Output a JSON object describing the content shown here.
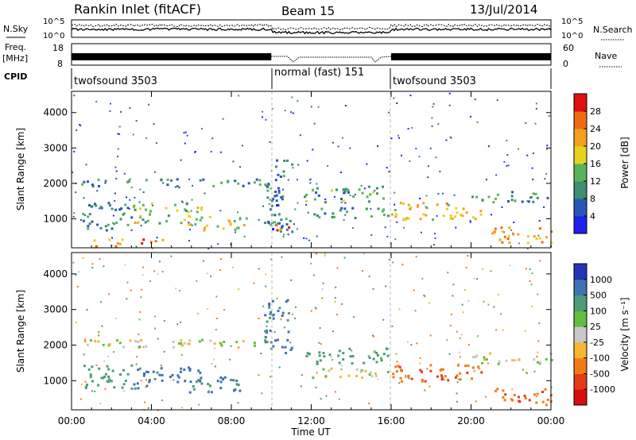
{
  "header": {
    "station": "Rankin Inlet (fitACF)",
    "beam": "Beam 15",
    "date": "13/Jul/2014"
  },
  "top_panels": {
    "nsky_label": "N.Sky",
    "nsearch_label": "N.Search",
    "freq_label_1": "Freq.",
    "freq_label_2": "[MHz]",
    "nave_label": "Nave",
    "cpid_label": "CPID",
    "noise_ticks_left": [
      "10^5",
      "10^0"
    ],
    "noise_ticks_right": [
      "10^5",
      "10^0"
    ],
    "freq_ticks": [
      "18",
      "8"
    ],
    "nave_ticks": [
      "60",
      "0"
    ]
  },
  "cpid_segments": [
    {
      "label": "twofsound 3503",
      "start_h": 0,
      "end_h": 10
    },
    {
      "label": "normal (fast) 151",
      "start_h": 10,
      "end_h": 16
    },
    {
      "label": "twofsound 3503",
      "start_h": 16,
      "end_h": 24
    }
  ],
  "axes": {
    "ylabel": "Slant Range [km]",
    "xlabel": "Time UT",
    "y_ticks": [
      "1000",
      "2000",
      "3000",
      "4000"
    ],
    "x_ticks": [
      "00:00",
      "04:00",
      "08:00",
      "12:00",
      "16:00",
      "20:00",
      "00:00"
    ]
  },
  "colorbars": {
    "power": {
      "label": "Power [dB]",
      "ticks": [
        "4",
        "8",
        "12",
        "16",
        "20",
        "24",
        "28"
      ],
      "colors": [
        "#1f1ff0",
        "#2a55b8",
        "#3f8c6e",
        "#58b45a",
        "#e7d21e",
        "#f3a11c",
        "#f06a14",
        "#e01010"
      ]
    },
    "velocity": {
      "label": "Velocity [m s⁻¹]",
      "ticks": [
        "1000",
        "500",
        "100",
        "25",
        "-25",
        "-100",
        "-500",
        "-1000"
      ],
      "colors": [
        "#2336b8",
        "#3f72b2",
        "#4f9a78",
        "#5fbf3c",
        "#c8c8c8",
        "#f5b730",
        "#f27a14",
        "#e33a18",
        "#d80e0e"
      ]
    }
  },
  "chart_data": [
    {
      "type": "heatmap",
      "title": "Power",
      "xlabel": "Time UT",
      "ylabel": "Slant Range [km]",
      "xlim_hours": [
        0,
        24
      ],
      "ylim_km": [
        180,
        4600
      ],
      "colorbar": {
        "label": "Power [dB]",
        "range": [
          0,
          30
        ],
        "ticks": [
          4,
          8,
          12,
          16,
          20,
          24,
          28
        ]
      },
      "echo_regions": [
        {
          "t": [
            0.3,
            10.0
          ],
          "r": [
            1950,
            2150
          ],
          "dB": 10
        },
        {
          "t": [
            0.5,
            3.0
          ],
          "r": [
            700,
            1500
          ],
          "dB": 9
        },
        {
          "t": [
            1.0,
            2.8
          ],
          "r": [
            200,
            450
          ],
          "dB": 20
        },
        {
          "t": [
            3.3,
            4.6
          ],
          "r": [
            300,
            500
          ],
          "dB": 24
        },
        {
          "t": [
            3.0,
            6.5
          ],
          "r": [
            900,
            1500
          ],
          "dB": 14
        },
        {
          "t": [
            5.8,
            8.8
          ],
          "r": [
            700,
            1100
          ],
          "dB": 18
        },
        {
          "t": [
            9.6,
            11.0
          ],
          "r": [
            600,
            2700
          ],
          "dB": 8
        },
        {
          "t": [
            10.2,
            11.0
          ],
          "r": [
            700,
            950
          ],
          "dB": 26
        },
        {
          "t": [
            11.5,
            15.8
          ],
          "r": [
            1500,
            1950
          ],
          "dB": 11
        },
        {
          "t": [
            12.0,
            15.8
          ],
          "r": [
            1050,
            1350
          ],
          "dB": 9
        },
        {
          "t": [
            16.0,
            20.5
          ],
          "r": [
            1000,
            1500
          ],
          "dB": 18
        },
        {
          "t": [
            20.0,
            24.0
          ],
          "r": [
            1500,
            1800
          ],
          "dB": 10
        },
        {
          "t": [
            21.0,
            24.0
          ],
          "r": [
            350,
            800
          ],
          "dB": 21
        }
      ]
    },
    {
      "type": "heatmap",
      "title": "Velocity",
      "xlabel": "Time UT",
      "ylabel": "Slant Range [km]",
      "xlim_hours": [
        0,
        24
      ],
      "ylim_km": [
        180,
        4600
      ],
      "colorbar": {
        "label": "Velocity [m s⁻¹]",
        "range": [
          -1000,
          1000
        ],
        "ticks": [
          1000,
          500,
          100,
          25,
          -25,
          -100,
          -500,
          -1000
        ]
      },
      "echo_regions": [
        {
          "t": [
            0.3,
            10.0
          ],
          "r": [
            1950,
            2200
          ],
          "vel": 0
        },
        {
          "t": [
            0.5,
            3.0
          ],
          "r": [
            800,
            1500
          ],
          "vel": 200
        },
        {
          "t": [
            3.0,
            6.5
          ],
          "r": [
            800,
            1400
          ],
          "vel": 700
        },
        {
          "t": [
            5.8,
            8.8
          ],
          "r": [
            700,
            1150
          ],
          "vel": 600
        },
        {
          "t": [
            9.6,
            11.0
          ],
          "r": [
            1800,
            3300
          ],
          "vel": 600
        },
        {
          "t": [
            11.5,
            15.8
          ],
          "r": [
            1500,
            1950
          ],
          "vel": 150
        },
        {
          "t": [
            12.0,
            15.8
          ],
          "r": [
            1100,
            1400
          ],
          "vel": 0
        },
        {
          "t": [
            16.0,
            20.5
          ],
          "r": [
            1000,
            1500
          ],
          "vel": -500
        },
        {
          "t": [
            20.0,
            24.0
          ],
          "r": [
            1500,
            1800
          ],
          "vel": 0
        },
        {
          "t": [
            21.0,
            24.0
          ],
          "r": [
            350,
            800
          ],
          "vel": -450
        }
      ]
    }
  ]
}
